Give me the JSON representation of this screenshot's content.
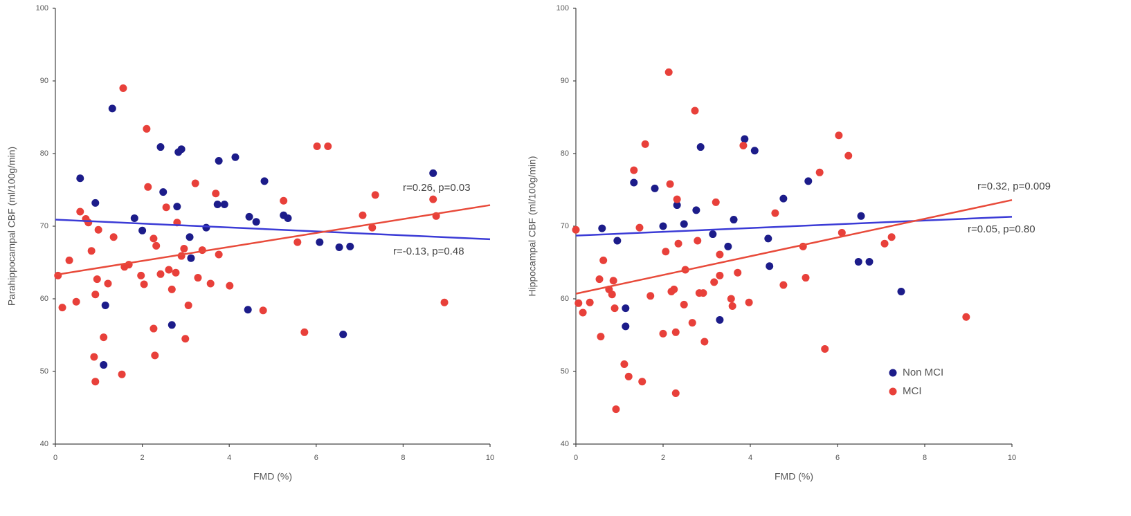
{
  "chart_data": [
    {
      "type": "scatter",
      "x_label": "FMD (%)",
      "y_label": "Parahippocampal CBF (ml/100g/min)",
      "xlim": [
        0,
        10
      ],
      "xticks": [
        0,
        2,
        4,
        6,
        8,
        10
      ],
      "ylim": [
        40,
        100
      ],
      "yticks": [
        40,
        50,
        60,
        70,
        80,
        90,
        100
      ],
      "series": [
        {
          "color": "#1c1c8a",
          "x": [
            1.31,
            0.57,
            0.92,
            1.82,
            2.0,
            2.42,
            2.48,
            2.8,
            2.83,
            2.9,
            2.68,
            1.15,
            1.11,
            3.09,
            3.12,
            3.47,
            3.73,
            3.89,
            3.76,
            4.14,
            4.46,
            4.62,
            4.81,
            5.25,
            5.35,
            4.43,
            6.08,
            6.53,
            6.78,
            8.69,
            6.62
          ],
          "values": [
            86.2,
            76.6,
            73.2,
            71.1,
            69.4,
            80.9,
            74.7,
            72.7,
            80.2,
            80.6,
            56.4,
            59.1,
            50.9,
            68.5,
            65.6,
            69.8,
            73.0,
            73.0,
            79.0,
            79.5,
            71.3,
            70.6,
            76.2,
            71.5,
            71.1,
            58.5,
            67.8,
            67.1,
            67.2,
            77.3,
            55.1
          ]
        },
        {
          "color": "#e8403a",
          "x": [
            1.56,
            2.1,
            0.06,
            0.16,
            0.32,
            0.48,
            0.57,
            0.7,
            0.76,
            0.83,
            0.92,
            0.96,
            0.99,
            0.89,
            0.92,
            1.11,
            1.21,
            1.34,
            1.53,
            1.59,
            1.69,
            1.97,
            2.04,
            2.13,
            2.26,
            2.32,
            2.26,
            2.29,
            2.42,
            2.55,
            2.61,
            2.68,
            2.77,
            2.8,
            2.9,
            2.96,
            2.99,
            3.06,
            3.22,
            3.28,
            3.38,
            3.57,
            3.69,
            3.76,
            4.01,
            4.78,
            5.25,
            5.57,
            5.73,
            6.02,
            6.27,
            7.07,
            7.29,
            7.36,
            8.69,
            8.76,
            8.95
          ],
          "values": [
            89.0,
            83.4,
            63.2,
            58.8,
            65.3,
            59.6,
            72.0,
            71.0,
            70.5,
            66.6,
            60.6,
            62.7,
            69.5,
            52.0,
            48.6,
            54.7,
            62.1,
            68.5,
            49.6,
            64.4,
            64.7,
            63.2,
            62.0,
            75.4,
            68.3,
            67.3,
            55.9,
            52.2,
            63.4,
            72.6,
            64.0,
            61.3,
            63.6,
            70.5,
            65.9,
            66.9,
            54.5,
            59.1,
            75.9,
            62.9,
            66.7,
            62.1,
            74.5,
            66.1,
            61.8,
            58.4,
            73.5,
            67.8,
            55.4,
            81.0,
            81.0,
            71.5,
            69.8,
            74.3,
            73.7,
            71.4,
            59.5
          ]
        }
      ],
      "trend_lines": [
        {
          "color": "#3b3bd6",
          "x": [
            0,
            10
          ],
          "y": [
            70.9,
            68.2
          ]
        },
        {
          "color": "#e84a3a",
          "x": [
            0,
            10
          ],
          "y": [
            63.3,
            72.9
          ]
        }
      ],
      "annotations": [
        {
          "text": "r=0.26, p=0.03",
          "color": "#444"
        },
        {
          "text": "r=-0.13, p=0.48",
          "color": "#444"
        }
      ]
    },
    {
      "type": "scatter",
      "x_label": "FMD (%)",
      "y_label": "Hippocampal CBF (ml/100g/min)",
      "xlim": [
        0,
        10
      ],
      "xticks": [
        0,
        2,
        4,
        6,
        8,
        10
      ],
      "ylim": [
        40,
        100
      ],
      "yticks": [
        40,
        50,
        60,
        70,
        80,
        90,
        100
      ],
      "legend": "lower right",
      "series": [
        {
          "name": "Non MCI",
          "color": "#1c1c8a",
          "x": [
            0.6,
            0.95,
            1.14,
            1.14,
            1.33,
            1.81,
            2.0,
            2.32,
            2.48,
            2.76,
            2.86,
            3.14,
            3.3,
            3.49,
            3.62,
            3.87,
            4.1,
            4.41,
            4.44,
            4.76,
            5.33,
            6.54,
            6.48,
            6.73,
            7.46
          ],
          "values": [
            69.7,
            68.0,
            58.7,
            56.2,
            76.0,
            75.2,
            70.0,
            72.9,
            70.3,
            72.2,
            80.9,
            68.9,
            57.1,
            67.2,
            70.9,
            82.0,
            80.4,
            68.3,
            64.5,
            73.8,
            76.2,
            71.4,
            65.1,
            65.1,
            61.0
          ]
        },
        {
          "name": "MCI",
          "color": "#e8403a",
          "x": [
            0,
            0.06,
            0.16,
            0.32,
            0.54,
            0.63,
            0.57,
            0.76,
            0.83,
            0.89,
            0.86,
            0.92,
            1.11,
            1.21,
            1.52,
            1.33,
            1.46,
            1.59,
            1.71,
            2.0,
            2.06,
            2.13,
            2.16,
            2.19,
            2.25,
            2.29,
            2.29,
            2.32,
            2.35,
            2.48,
            2.51,
            2.67,
            2.73,
            2.79,
            2.83,
            2.92,
            2.95,
            3.17,
            3.3,
            3.3,
            3.21,
            3.56,
            3.59,
            3.71,
            3.84,
            3.97,
            4.57,
            4.76,
            5.21,
            5.27,
            5.59,
            5.71,
            6.03,
            6.1,
            6.25,
            7.08,
            7.24,
            8.95
          ],
          "values": [
            69.5,
            59.4,
            58.1,
            59.5,
            62.7,
            65.3,
            54.8,
            61.3,
            60.6,
            58.7,
            62.5,
            44.8,
            51.0,
            49.3,
            48.6,
            77.7,
            69.8,
            81.3,
            60.4,
            55.2,
            66.5,
            91.2,
            75.8,
            61.0,
            61.3,
            55.4,
            47.0,
            73.7,
            67.6,
            59.2,
            64.0,
            56.7,
            85.9,
            68.0,
            60.8,
            60.8,
            54.1,
            62.3,
            63.2,
            66.1,
            73.3,
            60.0,
            59.0,
            63.6,
            81.1,
            59.5,
            71.8,
            61.9,
            67.2,
            62.9,
            77.4,
            53.1,
            82.5,
            69.1,
            79.7,
            67.6,
            68.5,
            57.5
          ]
        }
      ],
      "trend_lines": [
        {
          "color": "#3b3bd6",
          "x": [
            0,
            10
          ],
          "y": [
            68.7,
            71.3
          ]
        },
        {
          "color": "#e84a3a",
          "x": [
            0,
            10
          ],
          "y": [
            60.7,
            73.6
          ]
        }
      ],
      "annotations": [
        {
          "text": "r=0.32, p=0.009",
          "color": "#444"
        },
        {
          "text": "r=0.05, p=0.80",
          "color": "#444"
        }
      ]
    }
  ]
}
